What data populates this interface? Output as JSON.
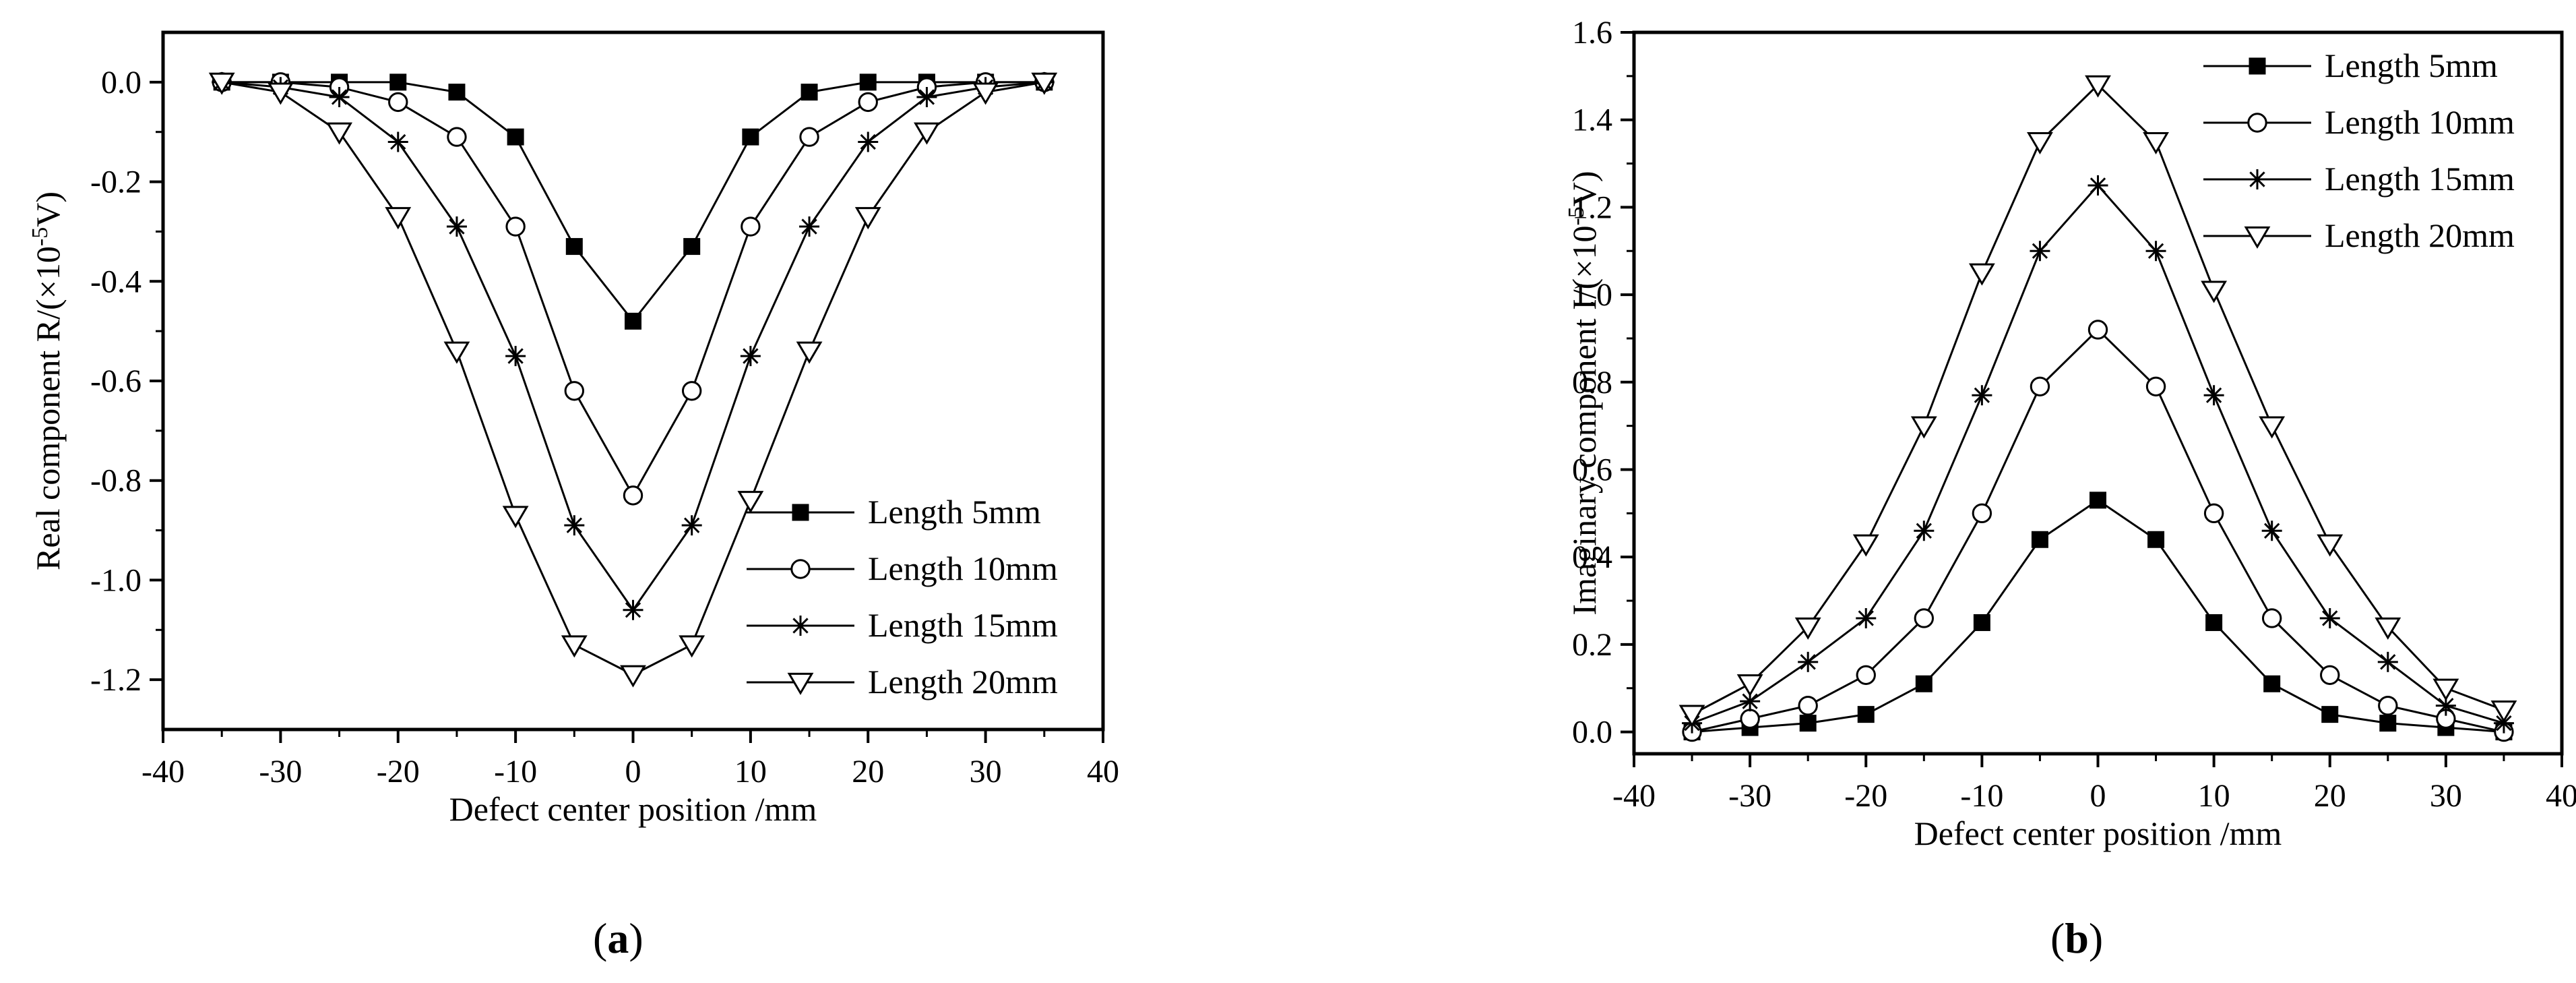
{
  "chart_data": [
    {
      "type": "line",
      "panel_label": "a",
      "xlabel": "Defect center position /mm",
      "ylabel": "Real component R/(×10",
      "ylabel_exp": "-5",
      "ylabel_unit": "V)",
      "xlim": [
        -40,
        40
      ],
      "ylim": [
        -1.3,
        0.1
      ],
      "xticks": [
        -40,
        -30,
        -20,
        -10,
        0,
        10,
        20,
        30,
        40
      ],
      "xtick_labels": [
        "-40",
        "-30",
        "-20",
        "-10",
        "0",
        "10",
        "20",
        "30",
        "40"
      ],
      "yticks": [
        0.0,
        -0.2,
        -0.4,
        -0.6,
        -0.8,
        -1.0,
        -1.2
      ],
      "ytick_labels": [
        "0.0",
        "-0.2",
        "-0.4",
        "-0.6",
        "-0.8",
        "-1.0",
        "-1.2"
      ],
      "grid": false,
      "legend_position": "lower-right",
      "x": [
        -35,
        -30,
        -25,
        -20,
        -15,
        -10,
        -5,
        0,
        5,
        10,
        15,
        20,
        25,
        30,
        35
      ],
      "series": [
        {
          "name": "Length 5mm",
          "marker": "filled-square",
          "values": [
            0.0,
            0.0,
            0.0,
            0.0,
            -0.02,
            -0.11,
            -0.33,
            -0.48,
            -0.33,
            -0.11,
            -0.02,
            0.0,
            0.0,
            0.0,
            0.0
          ]
        },
        {
          "name": "Length 10mm",
          "marker": "open-circle",
          "values": [
            0.0,
            0.0,
            -0.01,
            -0.04,
            -0.11,
            -0.29,
            -0.62,
            -0.83,
            -0.62,
            -0.29,
            -0.11,
            -0.04,
            -0.01,
            0.0,
            0.0
          ]
        },
        {
          "name": "Length 15mm",
          "marker": "asterisk",
          "values": [
            0.0,
            -0.01,
            -0.03,
            -0.12,
            -0.29,
            -0.55,
            -0.89,
            -1.06,
            -0.89,
            -0.55,
            -0.29,
            -0.12,
            -0.03,
            -0.01,
            0.0
          ]
        },
        {
          "name": "Length 20mm",
          "marker": "open-triangle-down",
          "values": [
            0.0,
            -0.02,
            -0.1,
            -0.27,
            -0.54,
            -0.87,
            -1.13,
            -1.19,
            -1.13,
            -0.84,
            -0.54,
            -0.27,
            -0.1,
            -0.02,
            0.0
          ]
        }
      ]
    },
    {
      "type": "line",
      "panel_label": "b",
      "xlabel": "Defect center position /mm",
      "ylabel": "Imaginary component I/(×10",
      "ylabel_exp": "-5",
      "ylabel_unit": "V)",
      "xlim": [
        -40,
        40
      ],
      "ylim": [
        -0.05,
        1.6
      ],
      "xticks": [
        -40,
        -30,
        -20,
        -10,
        0,
        10,
        20,
        30,
        40
      ],
      "xtick_labels": [
        "-40",
        "-30",
        "-20",
        "-10",
        "0",
        "10",
        "20",
        "30",
        "40"
      ],
      "yticks": [
        0.0,
        0.2,
        0.4,
        0.6,
        0.8,
        1.0,
        1.2,
        1.4,
        1.6
      ],
      "ytick_labels": [
        "0.0",
        "0.2",
        "0.4",
        "0.6",
        "0.8",
        "1.0",
        "1.2",
        "1.4",
        "1.6"
      ],
      "grid": false,
      "legend_position": "top-right",
      "x": [
        -35,
        -30,
        -25,
        -20,
        -15,
        -10,
        -5,
        0,
        5,
        10,
        15,
        20,
        25,
        30,
        35
      ],
      "series": [
        {
          "name": "Length 5mm",
          "marker": "filled-square",
          "values": [
            0.0,
            0.01,
            0.02,
            0.04,
            0.11,
            0.25,
            0.44,
            0.53,
            0.44,
            0.25,
            0.11,
            0.04,
            0.02,
            0.01,
            0.0
          ]
        },
        {
          "name": "Length 10mm",
          "marker": "open-circle",
          "values": [
            0.0,
            0.03,
            0.06,
            0.13,
            0.26,
            0.5,
            0.79,
            0.92,
            0.79,
            0.5,
            0.26,
            0.13,
            0.06,
            0.03,
            0.0
          ]
        },
        {
          "name": "Length 15mm",
          "marker": "asterisk",
          "values": [
            0.02,
            0.07,
            0.16,
            0.26,
            0.46,
            0.77,
            1.1,
            1.25,
            1.1,
            0.77,
            0.46,
            0.26,
            0.16,
            0.06,
            0.02
          ]
        },
        {
          "name": "Length 20mm",
          "marker": "open-triangle-down",
          "values": [
            0.04,
            0.11,
            0.24,
            0.43,
            0.7,
            1.05,
            1.35,
            1.48,
            1.35,
            1.01,
            0.7,
            0.43,
            0.24,
            0.1,
            0.05
          ]
        }
      ]
    }
  ],
  "panel_labels": {
    "a": "a",
    "b": "b"
  }
}
